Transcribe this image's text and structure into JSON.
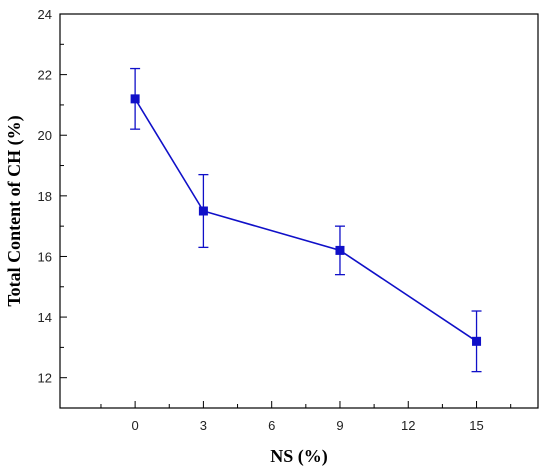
{
  "chart_data": {
    "type": "line",
    "x": [
      0,
      3,
      9,
      15
    ],
    "values": [
      21.2,
      17.5,
      16.2,
      13.2
    ],
    "error_low": [
      20.2,
      16.3,
      15.4,
      12.2
    ],
    "error_high": [
      22.2,
      18.7,
      17.0,
      14.2
    ],
    "xlabel": "NS (%)",
    "ylabel": "Total Content of CH (%)",
    "xlim": [
      -3.3,
      17.7
    ],
    "ylim": [
      11,
      24
    ],
    "xticks": [
      0,
      3,
      6,
      9,
      12,
      15
    ],
    "yticks": [
      12,
      14,
      16,
      18,
      20,
      22,
      24
    ],
    "grid": false,
    "marker": "square",
    "color": "#1010c8"
  }
}
